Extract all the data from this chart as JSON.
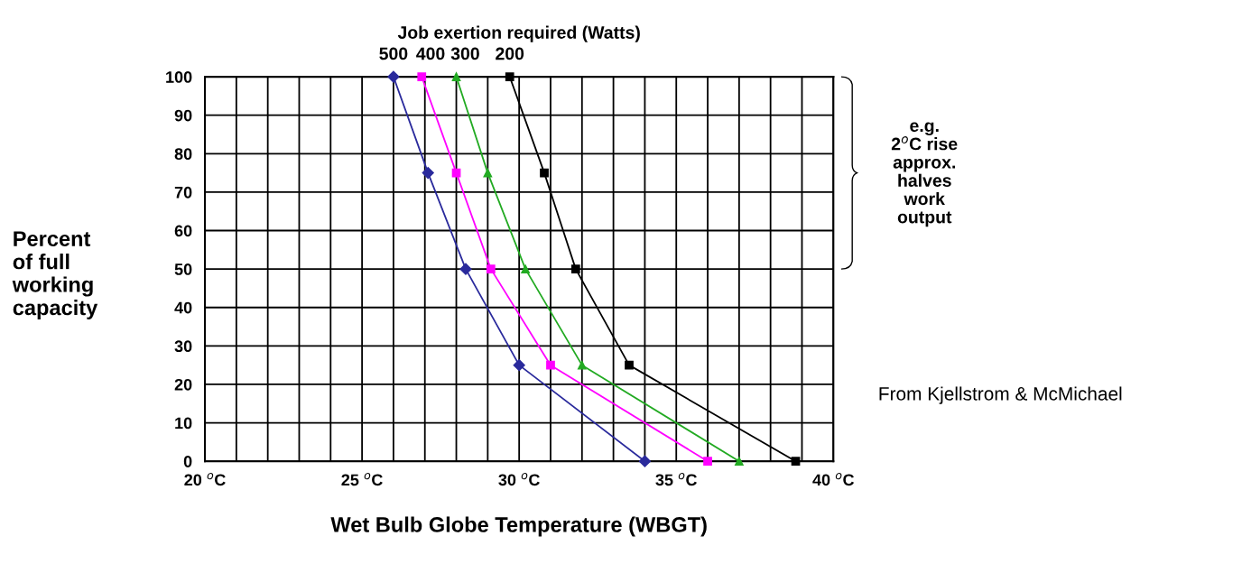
{
  "chart_data": {
    "type": "line",
    "legend_title": "Job exertion required (Watts)",
    "xlabel": "Wet Bulb Globe Temperature (WBGT)",
    "ylabel": "Percent\nof full\nworking\ncapacity",
    "xlim": [
      20,
      40
    ],
    "ylim": [
      0,
      100
    ],
    "xticks": [
      {
        "value": 20,
        "label": "20 $^{o}$C"
      },
      {
        "value": 21,
        "label": null
      },
      {
        "value": 22,
        "label": null
      },
      {
        "value": 23,
        "label": null
      },
      {
        "value": 24,
        "label": null
      },
      {
        "value": 25,
        "label": "25 $^{o}$C"
      },
      {
        "value": 26,
        "label": null
      },
      {
        "value": 27,
        "label": null
      },
      {
        "value": 28,
        "label": null
      },
      {
        "value": 29,
        "label": null
      },
      {
        "value": 30,
        "label": "30 $^{o}$C"
      },
      {
        "value": 31,
        "label": null
      },
      {
        "value": 32,
        "label": null
      },
      {
        "value": 33,
        "label": null
      },
      {
        "value": 34,
        "label": null
      },
      {
        "value": 35,
        "label": "35 $^{o}$C"
      },
      {
        "value": 36,
        "label": null
      },
      {
        "value": 37,
        "label": null
      },
      {
        "value": 38,
        "label": null
      },
      {
        "value": 39,
        "label": null
      },
      {
        "value": 40,
        "label": "40 $^{o}$C"
      }
    ],
    "yticks": [
      0,
      10,
      20,
      30,
      40,
      50,
      60,
      70,
      80,
      90,
      100
    ],
    "grid": true,
    "legend": false,
    "line_style": "solid",
    "series": [
      {
        "name": "500",
        "color": "#2a2a9c",
        "marker": "diamond",
        "x": [
          26,
          27.1,
          28.3,
          30,
          34
        ],
        "values": [
          100,
          75,
          50,
          25,
          0
        ]
      },
      {
        "name": "400",
        "color": "#ff00ff",
        "marker": "square",
        "x": [
          26.9,
          28,
          29.1,
          31,
          36
        ],
        "values": [
          100,
          75,
          50,
          25,
          0
        ]
      },
      {
        "name": "300",
        "color": "#22aa22",
        "marker": "triangle",
        "x": [
          28,
          29,
          30.2,
          32,
          37
        ],
        "values": [
          100,
          75,
          50,
          25,
          0
        ]
      },
      {
        "name": "200",
        "color": "#000000",
        "marker": "square",
        "x": [
          29.7,
          30.8,
          31.8,
          33.5,
          38.8
        ],
        "values": [
          100,
          75,
          50,
          25,
          0
        ]
      }
    ],
    "annotations": [
      "e.g.\n2$^{o}$C rise\napprox.\nhalves\nwork\noutput",
      "From Kjellstrom & McMichael"
    ]
  }
}
